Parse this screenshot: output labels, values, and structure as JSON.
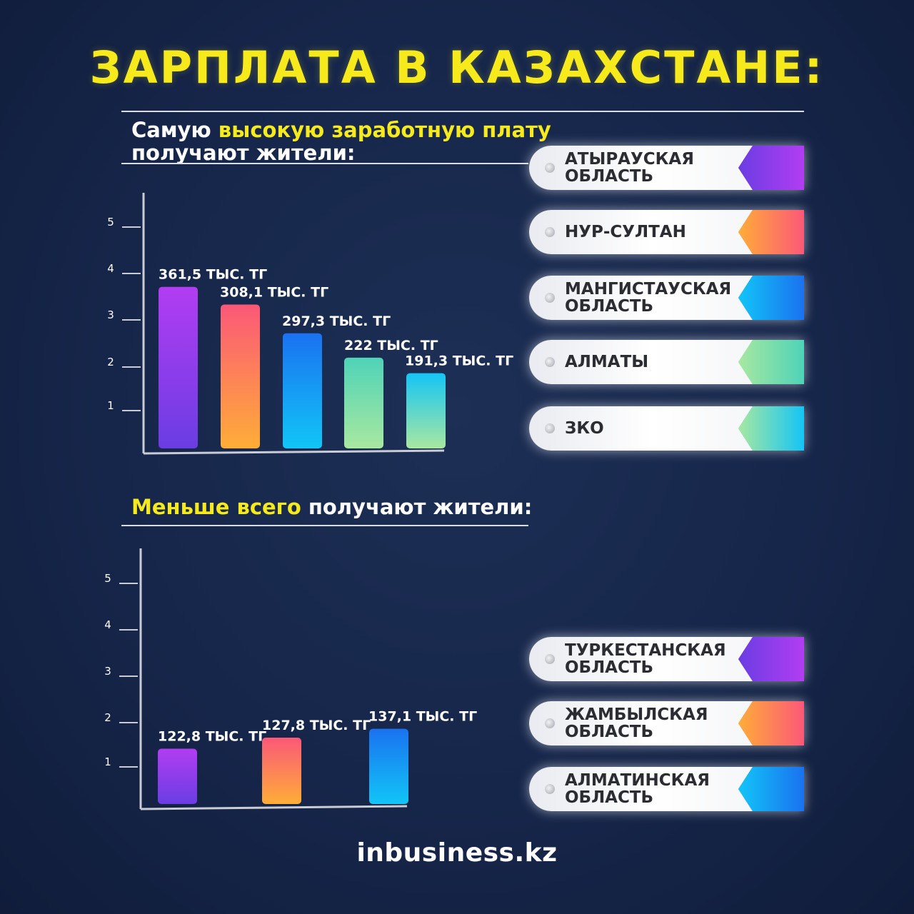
{
  "title": "ЗАРПЛАТА В КАЗАХСТАНЕ:",
  "top_section": {
    "subtitle_pre": "Самую ",
    "subtitle_highlight": "высокую заработную плату",
    "subtitle_line2": "получают жители:"
  },
  "bottom_section": {
    "subtitle_highlight": "Меньше всего",
    "subtitle_post": " получают жители:"
  },
  "colors": {
    "title": "#f7ea1c",
    "highlight": "#f7ea1c",
    "background": "#16264a",
    "purple": [
      "#b23df2",
      "#6a3de3"
    ],
    "orange": [
      "#fb5878",
      "#ffad38"
    ],
    "blue": [
      "#1a72f0",
      "#12c5f7"
    ],
    "mint": [
      "#4fd3b8",
      "#a8e8a0"
    ],
    "cyan": [
      "#14c5f5",
      "#a8e8a0"
    ]
  },
  "chart_data": [
    {
      "type": "bar",
      "yticks": [
        "1",
        "2",
        "3",
        "4",
        "5"
      ],
      "ylim": [
        0,
        5.6
      ],
      "categories": [
        "АТЫРАУСКАЯ\nОБЛАСТЬ",
        "НУР-СУЛТАН",
        "МАНГИСТАУСКАЯ\nОБЛАСТЬ",
        "АЛМАТЫ",
        "ЗКО"
      ],
      "values": [
        3.65,
        3.25,
        2.6,
        2.05,
        1.7
      ],
      "data_labels": [
        "361,5 ТЫС. ТГ",
        "308,1 ТЫС. ТГ",
        "297,3 ТЫС. ТГ",
        "222 ТЫС. ТГ",
        "191,3 ТЫС. ТГ"
      ],
      "bar_colors": [
        "purple",
        "orange",
        "blue",
        "mint",
        "cyan"
      ]
    },
    {
      "type": "bar",
      "yticks": [
        "1",
        "2",
        "3",
        "4",
        "5"
      ],
      "ylim": [
        0,
        5.6
      ],
      "categories": [
        "ТУРКЕСТАНСКАЯ\nОБЛАСТЬ",
        "ЖАМБЫЛСКАЯ\nОБЛАСТЬ",
        "АЛМАТИНСКАЯ\nОБЛАСТЬ"
      ],
      "values": [
        1.25,
        1.5,
        1.7
      ],
      "data_labels": [
        "122,8 ТЫС. ТГ",
        "127,8 ТЫС. ТГ",
        "137,1 ТЫС. ТГ"
      ],
      "bar_colors": [
        "purple",
        "orange",
        "blue"
      ]
    }
  ],
  "footer": {
    "logo": "inbusiness.kz"
  }
}
